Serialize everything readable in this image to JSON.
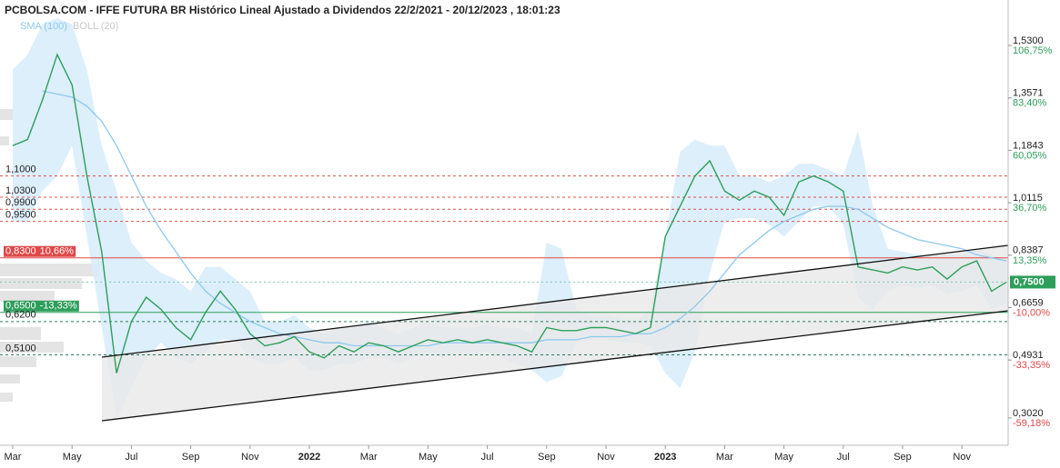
{
  "chart_data": {
    "type": "line",
    "title": "PCBOLSA.COM - IFFE FUTURA BR Histórico Lineal Ajustado a Dividendos 22/2/2021 - 20/12/2023 , 18:01:23",
    "categories": [
      "Mar",
      null,
      null,
      null,
      "May",
      null,
      null,
      null,
      "Jul",
      null,
      null,
      null,
      "Sep",
      null,
      null,
      null,
      "Nov",
      null,
      null,
      null,
      "2022",
      null,
      null,
      null,
      "Mar",
      null,
      null,
      null,
      "May",
      null,
      null,
      null,
      "Jul",
      null,
      null,
      null,
      "Sep",
      null,
      null,
      null,
      "Nov",
      null,
      null,
      null,
      "2023",
      null,
      null,
      null,
      "Mar",
      null,
      null,
      null,
      "May",
      null,
      null,
      null,
      "Jul",
      null,
      null,
      null,
      "Sep",
      null,
      null,
      null,
      "Nov",
      null,
      null,
      null
    ],
    "series": [
      {
        "color": "#2e9e5b",
        "values": [
          1.2,
          1.22,
          1.35,
          1.5,
          1.4,
          1.1,
          0.85,
          0.45,
          0.62,
          0.7,
          0.66,
          0.6,
          0.56,
          0.65,
          0.72,
          0.66,
          0.58,
          0.54,
          0.55,
          0.57,
          0.52,
          0.5,
          0.54,
          0.52,
          0.55,
          0.54,
          0.52,
          0.54,
          0.56,
          0.55,
          0.56,
          0.55,
          0.56,
          0.55,
          0.54,
          0.52,
          0.6,
          0.59,
          0.59,
          0.6,
          0.6,
          0.59,
          0.58,
          0.6,
          0.9,
          1.0,
          1.1,
          1.15,
          1.05,
          1.02,
          1.05,
          1.03,
          0.97,
          1.08,
          1.1,
          1.08,
          1.05,
          0.8,
          0.79,
          0.78,
          0.8,
          0.79,
          0.8,
          0.76,
          0.8,
          0.82,
          0.72,
          0.75
        ]
      }
    ],
    "indicators": [
      {
        "name": "SMA (100)",
        "color": "#8ec9ee",
        "values": [
          null,
          null,
          1.38,
          1.37,
          1.36,
          1.33,
          1.28,
          1.2,
          1.1,
          1.0,
          0.92,
          0.85,
          0.78,
          0.72,
          0.68,
          0.65,
          0.62,
          0.6,
          0.58,
          0.57,
          0.56,
          0.55,
          0.55,
          0.54,
          0.54,
          0.54,
          0.54,
          0.54,
          0.54,
          0.55,
          0.55,
          0.55,
          0.55,
          0.55,
          0.55,
          0.55,
          0.56,
          0.56,
          0.56,
          0.57,
          0.57,
          0.57,
          0.58,
          0.58,
          0.6,
          0.63,
          0.67,
          0.72,
          0.78,
          0.84,
          0.88,
          0.92,
          0.95,
          0.97,
          0.99,
          1.0,
          1.0,
          0.99,
          0.96,
          0.93,
          0.91,
          0.89,
          0.88,
          0.87,
          0.86,
          0.84,
          0.83,
          0.82
        ]
      },
      {
        "name": "BOLL (20)",
        "color": "#d6ecfa",
        "upper": [
          1.45,
          1.5,
          1.6,
          1.62,
          1.6,
          1.45,
          1.2,
          1.05,
          0.88,
          0.82,
          0.78,
          0.76,
          0.72,
          0.8,
          0.8,
          0.76,
          0.72,
          0.62,
          0.62,
          0.64,
          0.6,
          0.58,
          0.6,
          0.6,
          0.62,
          0.6,
          0.58,
          0.6,
          0.62,
          0.6,
          0.6,
          0.6,
          0.61,
          0.6,
          0.6,
          0.58,
          0.88,
          0.86,
          0.66,
          0.64,
          0.64,
          0.63,
          0.62,
          0.66,
          0.9,
          1.18,
          1.22,
          1.2,
          1.2,
          1.1,
          1.1,
          1.08,
          1.1,
          1.14,
          1.14,
          1.12,
          1.1,
          1.25,
          1.0,
          0.86,
          0.85,
          0.84,
          0.84,
          0.84,
          0.84,
          0.86,
          0.84,
          0.82
        ],
        "lower": [
          0.95,
          0.95,
          1.05,
          1.1,
          1.2,
          0.9,
          0.6,
          0.3,
          0.4,
          0.5,
          0.55,
          0.5,
          0.48,
          0.52,
          0.56,
          0.56,
          0.5,
          0.48,
          0.48,
          0.5,
          0.46,
          0.46,
          0.48,
          0.48,
          0.5,
          0.5,
          0.48,
          0.5,
          0.52,
          0.5,
          0.52,
          0.51,
          0.52,
          0.5,
          0.48,
          0.46,
          0.42,
          0.44,
          0.55,
          0.56,
          0.56,
          0.55,
          0.55,
          0.54,
          0.45,
          0.4,
          0.52,
          0.78,
          0.95,
          0.96,
          0.96,
          0.94,
          0.9,
          0.95,
          1.0,
          1.0,
          0.94,
          0.7,
          0.66,
          0.72,
          0.74,
          0.73,
          0.74,
          0.71,
          0.72,
          0.74,
          0.66,
          0.68
        ]
      }
    ],
    "ylim": [
      0.221,
      1.656
    ],
    "yticks": [
      {
        "value": 1.53,
        "label": "1,5300"
      },
      {
        "value": 1.3571,
        "label": "1,3571"
      },
      {
        "value": 1.1843,
        "label": "1,1843"
      },
      {
        "value": 1.0115,
        "label": "1,0115"
      },
      {
        "value": 0.8387,
        "label": "0,8387"
      },
      {
        "value": 0.6659,
        "label": "0,6659"
      },
      {
        "value": 0.4931,
        "label": "0,4931"
      },
      {
        "value": 0.302,
        "label": "0,3020"
      }
    ],
    "y2lim": [
      -70.1,
      123.8
    ],
    "y2ticks": [
      {
        "value": 106.75,
        "label": "106,75%"
      },
      {
        "value": 83.4,
        "label": "83,40%"
      },
      {
        "value": 60.05,
        "label": "60,05%"
      },
      {
        "value": 36.7,
        "label": "36,70%"
      },
      {
        "value": 13.35,
        "label": "13,35%"
      },
      {
        "value": -10,
        "label": "-10,00%"
      },
      {
        "value": -33.35,
        "label": "-33,35%"
      },
      {
        "value": -59.18,
        "label": "-59,18%"
      }
    ],
    "levels": [
      {
        "value": 1.1,
        "label": "1,1000",
        "color": "#d9534f",
        "style": "dashed"
      },
      {
        "value": 1.03,
        "label": "1,0300",
        "color": "#d9534f",
        "style": "dashed"
      },
      {
        "value": 0.99,
        "label": "0,9900",
        "color": "#d9534f",
        "style": "dashed"
      },
      {
        "value": 0.95,
        "label": "0,9500",
        "color": "#d9534f",
        "style": "dashed"
      },
      {
        "value": 0.83,
        "label": "0,8300",
        "change_label": "10,66%",
        "color": "#e04848",
        "style": "solid"
      },
      {
        "value": 0.65,
        "label": "0,6500",
        "change_label": "-13,33%",
        "color": "#2e9e5b",
        "style": "solid"
      },
      {
        "value": 0.62,
        "label": "0,6200",
        "color": "#2e7d5b",
        "style": "dashed"
      },
      {
        "value": 0.51,
        "label": "0,5100",
        "color": "#2e7d5b",
        "style": "dashed"
      }
    ],
    "last": {
      "value": 0.75,
      "label": "0,7500",
      "color": "#2e9e5b"
    }
  }
}
